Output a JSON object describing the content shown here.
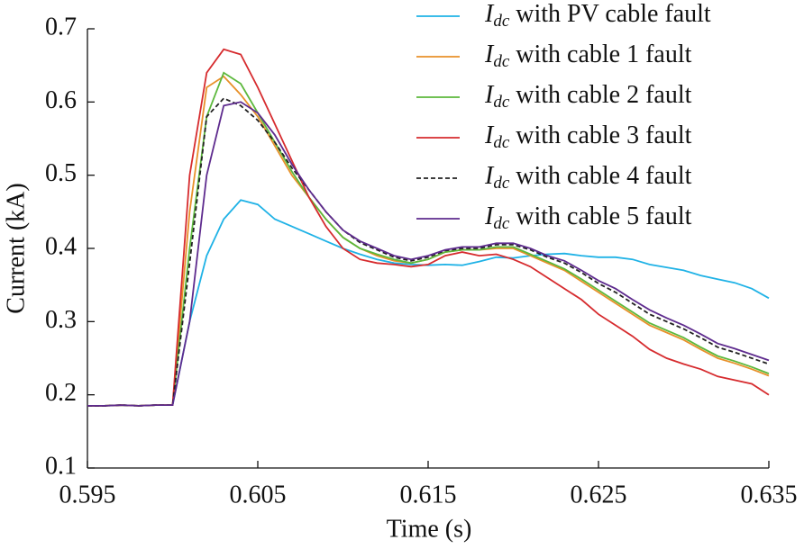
{
  "chart_data": {
    "type": "line",
    "xlabel": "Time (s)",
    "ylabel": "Current (kA)",
    "x": [
      0.595,
      0.596,
      0.597,
      0.598,
      0.599,
      0.6,
      0.601,
      0.602,
      0.603,
      0.604,
      0.605,
      0.606,
      0.607,
      0.608,
      0.609,
      0.61,
      0.611,
      0.612,
      0.613,
      0.614,
      0.615,
      0.616,
      0.617,
      0.618,
      0.619,
      0.62,
      0.621,
      0.622,
      0.623,
      0.624,
      0.625,
      0.626,
      0.627,
      0.628,
      0.629,
      0.63,
      0.631,
      0.632,
      0.633,
      0.634,
      0.635
    ],
    "xlim": [
      0.595,
      0.635
    ],
    "xticks": [
      0.595,
      0.605,
      0.615,
      0.625,
      0.635
    ],
    "ylim": [
      0.1,
      0.7
    ],
    "yticks": [
      0.1,
      0.2,
      0.3,
      0.4,
      0.5,
      0.6,
      0.7
    ],
    "legend": "top-right",
    "series": [
      {
        "name": "Idc with PV cable fault",
        "color": "#1fb2e6",
        "line_style": "solid",
        "values": [
          0.185,
          0.185,
          0.186,
          0.185,
          0.186,
          0.186,
          0.3,
          0.39,
          0.44,
          0.466,
          0.46,
          0.44,
          0.43,
          0.42,
          0.41,
          0.4,
          0.392,
          0.385,
          0.38,
          0.378,
          0.377,
          0.378,
          0.377,
          0.382,
          0.388,
          0.387,
          0.39,
          0.392,
          0.393,
          0.39,
          0.388,
          0.388,
          0.385,
          0.378,
          0.374,
          0.37,
          0.363,
          0.358,
          0.353,
          0.345,
          0.332
        ]
      },
      {
        "name": "Idc with cable 1 fault",
        "color": "#e8912a",
        "line_style": "solid",
        "values": [
          0.185,
          0.185,
          0.186,
          0.185,
          0.186,
          0.186,
          0.45,
          0.62,
          0.635,
          0.61,
          0.58,
          0.54,
          0.5,
          0.47,
          0.44,
          0.415,
          0.4,
          0.39,
          0.383,
          0.38,
          0.385,
          0.395,
          0.398,
          0.398,
          0.4,
          0.4,
          0.39,
          0.38,
          0.37,
          0.355,
          0.34,
          0.325,
          0.31,
          0.295,
          0.285,
          0.275,
          0.262,
          0.25,
          0.243,
          0.235,
          0.226
        ]
      },
      {
        "name": "Idc with cable 2 fault",
        "color": "#5cb83c",
        "line_style": "solid",
        "values": [
          0.185,
          0.185,
          0.186,
          0.185,
          0.186,
          0.186,
          0.4,
          0.58,
          0.64,
          0.625,
          0.585,
          0.545,
          0.505,
          0.47,
          0.44,
          0.415,
          0.4,
          0.392,
          0.385,
          0.38,
          0.385,
          0.395,
          0.398,
          0.398,
          0.402,
          0.402,
          0.392,
          0.382,
          0.372,
          0.358,
          0.343,
          0.328,
          0.313,
          0.298,
          0.288,
          0.278,
          0.265,
          0.253,
          0.246,
          0.238,
          0.229
        ]
      },
      {
        "name": "Idc with cable 3 fault",
        "color": "#d62b2e",
        "line_style": "solid",
        "values": [
          0.185,
          0.185,
          0.186,
          0.185,
          0.186,
          0.186,
          0.5,
          0.64,
          0.672,
          0.665,
          0.62,
          0.57,
          0.52,
          0.47,
          0.43,
          0.4,
          0.385,
          0.38,
          0.378,
          0.375,
          0.378,
          0.39,
          0.395,
          0.39,
          0.392,
          0.385,
          0.375,
          0.36,
          0.345,
          0.33,
          0.31,
          0.295,
          0.28,
          0.262,
          0.25,
          0.242,
          0.235,
          0.225,
          0.22,
          0.215,
          0.2
        ]
      },
      {
        "name": "Idc with cable 4 fault",
        "color": "#222222",
        "line_style": "dashed",
        "values": [
          0.185,
          0.185,
          0.186,
          0.185,
          0.186,
          0.186,
          0.38,
          0.58,
          0.605,
          0.595,
          0.575,
          0.545,
          0.51,
          0.48,
          0.45,
          0.425,
          0.408,
          0.398,
          0.388,
          0.383,
          0.388,
          0.397,
          0.4,
          0.4,
          0.405,
          0.405,
          0.398,
          0.388,
          0.38,
          0.367,
          0.352,
          0.34,
          0.325,
          0.31,
          0.3,
          0.29,
          0.278,
          0.265,
          0.258,
          0.25,
          0.242
        ]
      },
      {
        "name": "Idc with cable 5 fault",
        "color": "#5e2b8e",
        "line_style": "solid",
        "values": [
          0.185,
          0.185,
          0.186,
          0.185,
          0.186,
          0.186,
          0.3,
          0.5,
          0.595,
          0.6,
          0.585,
          0.555,
          0.515,
          0.48,
          0.45,
          0.425,
          0.41,
          0.4,
          0.39,
          0.385,
          0.39,
          0.398,
          0.402,
          0.402,
          0.407,
          0.407,
          0.4,
          0.39,
          0.383,
          0.37,
          0.356,
          0.345,
          0.33,
          0.316,
          0.305,
          0.295,
          0.283,
          0.27,
          0.263,
          0.255,
          0.247
        ]
      }
    ]
  }
}
